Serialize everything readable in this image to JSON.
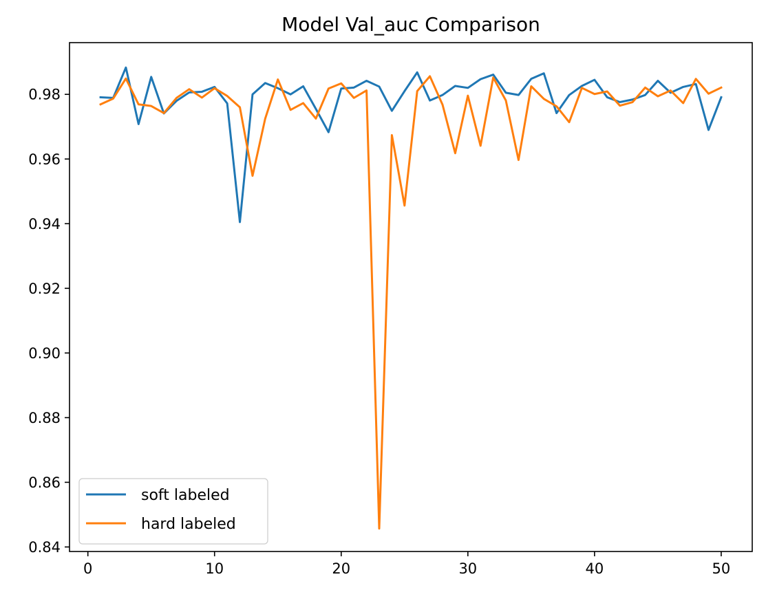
{
  "chart_data": {
    "type": "line",
    "title": "Model Val_auc Comparison",
    "xlabel": "",
    "ylabel": "",
    "xlim": [
      -1.45,
      52.45
    ],
    "ylim": [
      0.8386,
      0.996
    ],
    "x_ticks": [
      0,
      10,
      20,
      30,
      40,
      50
    ],
    "x_tick_labels": [
      "0",
      "10",
      "20",
      "30",
      "40",
      "50"
    ],
    "y_ticks": [
      0.84,
      0.86,
      0.88,
      0.9,
      0.92,
      0.94,
      0.96,
      0.98
    ],
    "y_tick_labels": [
      "0.84",
      "0.86",
      "0.88",
      "0.90",
      "0.92",
      "0.94",
      "0.96",
      "0.98"
    ],
    "grid": false,
    "legend_position": "lower-left",
    "x": [
      1,
      2,
      3,
      4,
      5,
      6,
      7,
      8,
      9,
      10,
      11,
      12,
      13,
      14,
      15,
      16,
      17,
      18,
      19,
      20,
      21,
      22,
      23,
      24,
      25,
      26,
      27,
      28,
      29,
      30,
      31,
      32,
      33,
      34,
      35,
      36,
      37,
      38,
      39,
      40,
      41,
      42,
      43,
      44,
      45,
      46,
      47,
      48,
      49,
      50
    ],
    "series": [
      {
        "name": "soft labeled",
        "color": "#1f77b4",
        "values": [
          0.9791,
          0.9789,
          0.9883,
          0.9708,
          0.9854,
          0.9741,
          0.978,
          0.9806,
          0.9808,
          0.9823,
          0.9772,
          0.9405,
          0.98,
          0.9835,
          0.9819,
          0.98,
          0.9825,
          0.9755,
          0.9683,
          0.9818,
          0.9821,
          0.9842,
          0.9824,
          0.9749,
          0.981,
          0.9868,
          0.9781,
          0.9798,
          0.9826,
          0.982,
          0.9847,
          0.9861,
          0.9805,
          0.9798,
          0.9848,
          0.9865,
          0.9742,
          0.9798,
          0.9826,
          0.9845,
          0.9791,
          0.9776,
          0.9784,
          0.9798,
          0.9842,
          0.9805,
          0.9823,
          0.9832,
          0.969,
          0.9791
        ]
      },
      {
        "name": "hard labeled",
        "color": "#ff7f0e",
        "values": [
          0.9769,
          0.9787,
          0.9849,
          0.9769,
          0.9764,
          0.9742,
          0.9789,
          0.9816,
          0.979,
          0.9819,
          0.9795,
          0.976,
          0.9548,
          0.9725,
          0.9846,
          0.9752,
          0.9773,
          0.9725,
          0.9818,
          0.9834,
          0.9789,
          0.9812,
          0.8457,
          0.9674,
          0.9456,
          0.981,
          0.9856,
          0.9768,
          0.9618,
          0.9796,
          0.9641,
          0.9852,
          0.9781,
          0.9597,
          0.9825,
          0.9786,
          0.9763,
          0.9714,
          0.982,
          0.9801,
          0.9809,
          0.9765,
          0.9776,
          0.9821,
          0.9794,
          0.9812,
          0.9773,
          0.9848,
          0.9802,
          0.9821
        ]
      }
    ]
  }
}
